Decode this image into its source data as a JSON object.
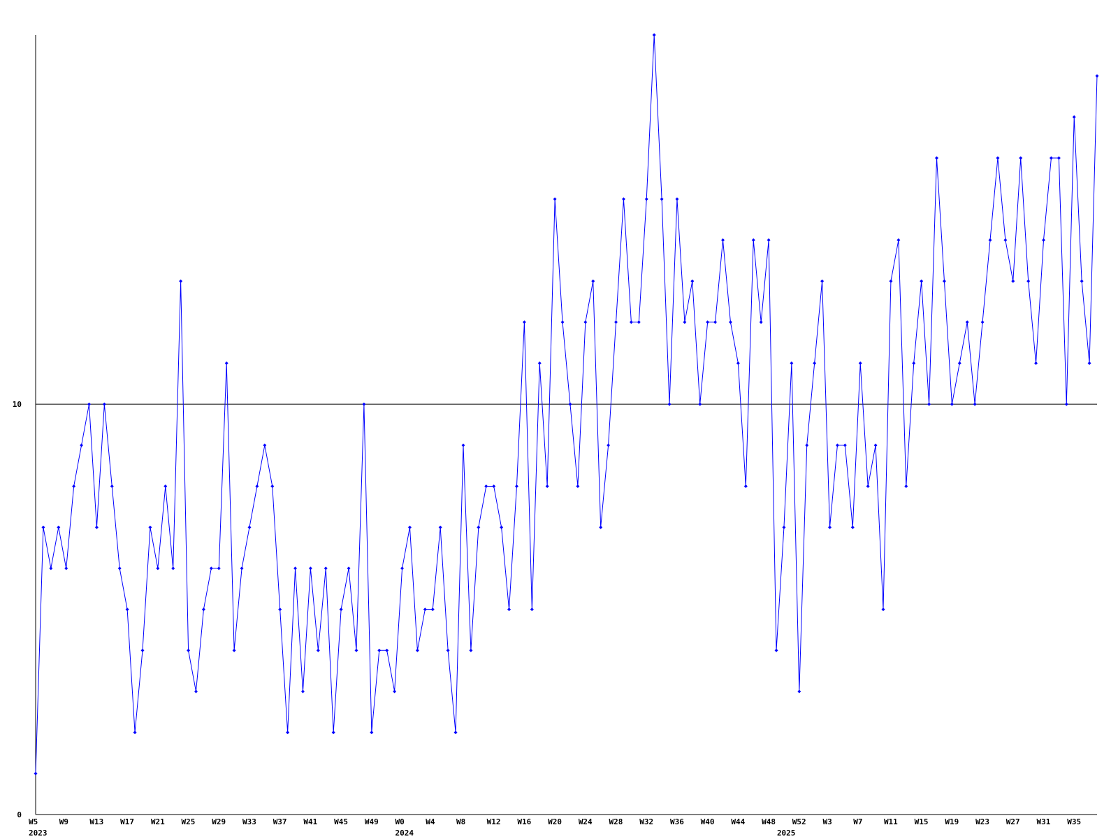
{
  "chart_data": {
    "type": "line",
    "categories": [
      "W5",
      null,
      null,
      null,
      "W9",
      null,
      null,
      null,
      "W13",
      null,
      null,
      null,
      "W17",
      null,
      null,
      null,
      "W21",
      null,
      null,
      null,
      "W25",
      null,
      null,
      null,
      "W29",
      null,
      null,
      null,
      "W33",
      null,
      null,
      null,
      "W37",
      null,
      null,
      null,
      "W41",
      null,
      null,
      null,
      "W45",
      null,
      null,
      null,
      "W49",
      null,
      null,
      null,
      "W0",
      null,
      null,
      null,
      "W4",
      null,
      null,
      null,
      "W8",
      null,
      null,
      null,
      "W12",
      null,
      null,
      null,
      "W16",
      null,
      null,
      null,
      "W20",
      null,
      null,
      null,
      "W24",
      null,
      null,
      null,
      "W28",
      null,
      null,
      null,
      "W32",
      null,
      null,
      null,
      "W36",
      null,
      null,
      null,
      "W40",
      null,
      null,
      null,
      "W44",
      null,
      null,
      null,
      "W48",
      null,
      null,
      null,
      "W52",
      null,
      null,
      null,
      "W3",
      null,
      null,
      null,
      "W7",
      null,
      null,
      null,
      "W11",
      null,
      null,
      null,
      "W15",
      null,
      null,
      null,
      "W19",
      null,
      null,
      null,
      "W23",
      null,
      null,
      null,
      "W27",
      null,
      null,
      null,
      "W31",
      null,
      null,
      null,
      "W35",
      null,
      null,
      null
    ],
    "years": [
      "2023",
      null,
      null,
      null,
      null,
      null,
      null,
      null,
      null,
      null,
      null,
      null,
      null,
      null,
      null,
      null,
      null,
      null,
      null,
      null,
      null,
      null,
      null,
      null,
      null,
      null,
      null,
      null,
      null,
      null,
      null,
      null,
      null,
      null,
      null,
      null,
      null,
      null,
      null,
      null,
      null,
      null,
      null,
      null,
      null,
      null,
      null,
      null,
      "2024",
      null,
      null,
      null,
      null,
      null,
      null,
      null,
      null,
      null,
      null,
      null,
      null,
      null,
      null,
      null,
      null,
      null,
      null,
      null,
      null,
      null,
      null,
      null,
      null,
      null,
      null,
      null,
      null,
      null,
      null,
      null,
      null,
      null,
      null,
      null,
      null,
      null,
      null,
      null,
      null,
      null,
      null,
      null,
      null,
      null,
      null,
      null,
      null,
      null,
      "2025",
      null,
      null,
      null,
      null,
      null,
      null,
      null,
      null,
      null,
      null,
      null,
      null,
      null,
      null,
      null,
      null,
      null,
      null,
      null,
      null,
      null,
      null,
      null,
      null,
      null,
      null,
      null,
      null,
      null,
      null,
      null,
      null,
      null,
      null,
      null,
      null,
      null,
      null,
      null
    ],
    "series": [
      {
        "color": "#0000ff",
        "values": [
          1,
          7,
          6,
          7,
          6,
          8,
          9,
          10,
          7,
          10,
          8,
          6,
          5,
          2,
          4,
          7,
          6,
          8,
          6,
          13,
          4,
          3,
          5,
          6,
          6,
          11,
          4,
          6,
          7,
          8,
          9,
          8,
          5,
          2,
          6,
          3,
          6,
          4,
          6,
          2,
          5,
          6,
          4,
          10,
          2,
          4,
          4,
          3,
          6,
          7,
          4,
          5,
          5,
          7,
          4,
          2,
          9,
          4,
          7,
          8,
          8,
          7,
          5,
          8,
          12,
          5,
          11,
          8,
          15,
          12,
          10,
          8,
          12,
          13,
          7,
          9,
          12,
          15,
          12,
          12,
          15,
          19,
          15,
          10,
          15,
          12,
          13,
          10,
          12,
          12,
          14,
          12,
          11,
          8,
          14,
          12,
          14,
          4,
          7,
          11,
          3,
          9,
          11,
          13,
          7,
          9,
          9,
          7,
          11,
          8,
          9,
          5,
          13,
          14,
          8,
          11,
          13,
          10,
          16,
          13,
          10,
          11,
          12,
          10,
          12,
          14,
          16,
          14,
          13,
          16,
          13,
          11,
          14,
          16,
          16,
          10,
          17,
          13,
          11,
          18
        ]
      }
    ],
    "ylim": [
      0,
      19
    ],
    "yticks": [
      0,
      10
    ],
    "grid": true
  }
}
